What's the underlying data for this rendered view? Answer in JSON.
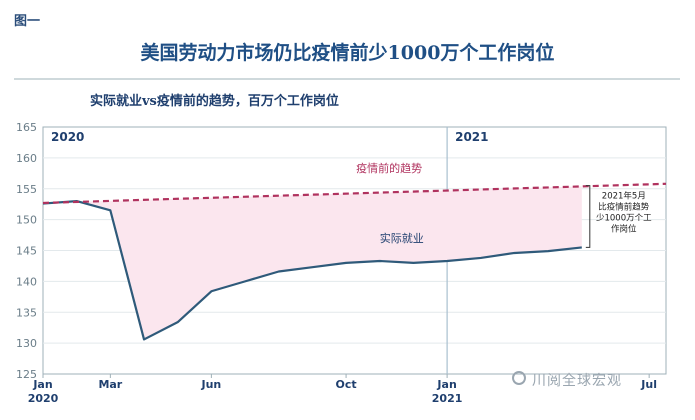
{
  "figure_label": "图一",
  "title": "美国劳动力市场仍比疫情前少1000万个工作岗位",
  "chart_data": {
    "type": "line",
    "subtitle": "实际就业vs疫情前的趋势，百万个工作岗位",
    "x_ticks": [
      "Jan 2020",
      "Mar",
      "Jun",
      "Oct",
      "Jan 2021",
      "Jul"
    ],
    "x_tick_months": [
      0,
      2,
      5,
      9,
      12,
      18
    ],
    "year_labels": [
      {
        "text": "2020",
        "month": 0
      },
      {
        "text": "2021",
        "month": 12
      }
    ],
    "ylim": [
      125,
      165
    ],
    "y_ticks": [
      125,
      130,
      135,
      140,
      145,
      150,
      155,
      160,
      165
    ],
    "xlim_months": [
      0,
      18.5
    ],
    "series": [
      {
        "name": "实际就业",
        "color": "#2f5a7a",
        "months": [
          0,
          1,
          2,
          3,
          4,
          5,
          6,
          7,
          8,
          9,
          10,
          11,
          12,
          13,
          14,
          15,
          16
        ],
        "values": [
          152.6,
          153.0,
          151.5,
          130.6,
          133.4,
          138.4,
          140.0,
          141.6,
          142.3,
          143.0,
          143.3,
          143.0,
          143.3,
          143.8,
          144.6,
          144.9,
          145.5
        ]
      },
      {
        "name": "疫情前的趋势",
        "color": "#b0325e",
        "dashed": true,
        "months": [
          0,
          18.5
        ],
        "values": [
          152.7,
          155.8
        ]
      }
    ],
    "annotation": {
      "lines": [
        "2021年5月",
        "比疫情前趋势",
        "少1000万个工",
        "作岗位"
      ],
      "month": 16,
      "from": 145.5,
      "to": 155.5
    }
  },
  "watermark": "川阅全球宏观"
}
